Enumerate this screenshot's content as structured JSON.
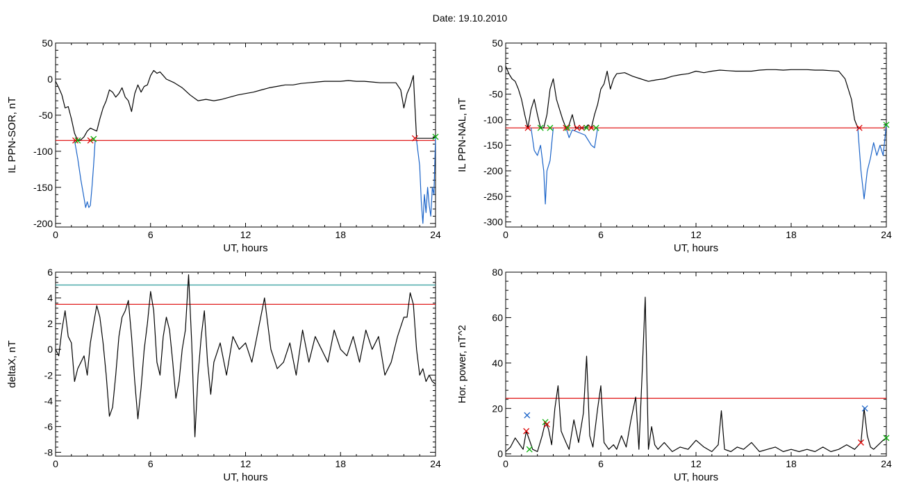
{
  "page": {
    "title": "Date:  19.10.2010"
  },
  "chart_data": [
    {
      "type": "line",
      "title": "",
      "xlabel": "UT, hours",
      "ylabel": "IL PPN-SOR, nT",
      "xlim": [
        0,
        24
      ],
      "ylim": [
        -205,
        50
      ],
      "xticks": [
        0,
        6,
        12,
        18,
        24
      ],
      "yticks": [
        -200,
        -150,
        -100,
        -50,
        0,
        50
      ],
      "hlines": [
        {
          "y": -85,
          "color": "#dd0000"
        }
      ],
      "series": [
        {
          "color": "#000000",
          "x": [
            0,
            0.2,
            0.4,
            0.6,
            0.8,
            1.0,
            1.2,
            1.4,
            1.6,
            1.8,
            2.0,
            2.2,
            2.4,
            2.6,
            2.8,
            3.0,
            3.2,
            3.4,
            3.6,
            3.8,
            4.0,
            4.2,
            4.4,
            4.6,
            4.8,
            5.0,
            5.2,
            5.4,
            5.6,
            5.8,
            6.0,
            6.2,
            6.4,
            6.6,
            6.8,
            7.0,
            7.5,
            8.0,
            8.5,
            9.0,
            9.5,
            10.0,
            10.5,
            11.0,
            11.5,
            12.0,
            12.5,
            13.0,
            13.5,
            14.0,
            14.5,
            15.0,
            15.5,
            16.0,
            16.5,
            17.0,
            17.5,
            18.0,
            18.5,
            19.0,
            19.5,
            20.0,
            20.5,
            21.0,
            21.5,
            21.8,
            22.0,
            22.2,
            22.4,
            22.6,
            22.8,
            23.0,
            23.2,
            23.4,
            23.6,
            23.8,
            24.0
          ],
          "y": [
            -3,
            -12,
            -22,
            -40,
            -38,
            -55,
            -75,
            -85,
            -84,
            -80,
            -72,
            -68,
            -70,
            -72,
            -55,
            -40,
            -30,
            -15,
            -18,
            -25,
            -20,
            -12,
            -25,
            -30,
            -45,
            -20,
            -8,
            -18,
            -10,
            -8,
            5,
            12,
            8,
            10,
            5,
            0,
            -5,
            -12,
            -22,
            -30,
            -28,
            -30,
            -28,
            -25,
            -22,
            -20,
            -18,
            -15,
            -12,
            -10,
            -8,
            -8,
            -6,
            -5,
            -4,
            -3,
            -3,
            -3,
            -2,
            -3,
            -3,
            -4,
            -5,
            -5,
            -5,
            -15,
            -40,
            -20,
            -10,
            5,
            -82,
            -82,
            -82,
            -82,
            -82,
            -82,
            -80
          ]
        },
        {
          "color": "#1a63c8",
          "x": [
            1.2,
            1.4,
            1.6,
            1.8,
            1.9,
            2.0,
            2.1,
            2.2,
            2.3,
            2.4,
            2.5
          ],
          "y": [
            -85,
            -110,
            -140,
            -165,
            -178,
            -170,
            -178,
            -175,
            -150,
            -120,
            -85
          ]
        },
        {
          "color": "#1a63c8",
          "x": [
            22.8,
            23.0,
            23.1,
            23.2,
            23.3,
            23.4,
            23.5,
            23.6,
            23.7,
            23.8,
            23.9,
            24.0
          ],
          "y": [
            -85,
            -120,
            -170,
            -200,
            -160,
            -185,
            -150,
            -175,
            -190,
            -150,
            -160,
            -80
          ]
        }
      ],
      "markers": [
        {
          "x": 1.25,
          "y": -85,
          "color": "#dd0000"
        },
        {
          "x": 1.4,
          "y": -85,
          "color": "#00b000"
        },
        {
          "x": 2.2,
          "y": -85,
          "color": "#dd0000"
        },
        {
          "x": 2.4,
          "y": -83,
          "color": "#00b000"
        },
        {
          "x": 22.7,
          "y": -82,
          "color": "#dd0000"
        },
        {
          "x": 24.0,
          "y": -80,
          "color": "#00b000"
        }
      ]
    },
    {
      "type": "line",
      "title": "",
      "xlabel": "UT, hours",
      "ylabel": "IL PPN-NAL, nT",
      "xlim": [
        0,
        24
      ],
      "ylim": [
        -310,
        50
      ],
      "xticks": [
        0,
        6,
        12,
        18,
        24
      ],
      "yticks": [
        -300,
        -250,
        -200,
        -150,
        -100,
        -50,
        0,
        50
      ],
      "hlines": [
        {
          "y": -116,
          "color": "#dd0000"
        }
      ],
      "series": [
        {
          "color": "#000000",
          "x": [
            0,
            0.2,
            0.4,
            0.6,
            0.8,
            1.0,
            1.2,
            1.4,
            1.6,
            1.8,
            2.0,
            2.2,
            2.4,
            2.6,
            2.8,
            3.0,
            3.2,
            3.4,
            3.6,
            3.8,
            4.0,
            4.2,
            4.4,
            4.6,
            4.8,
            5.0,
            5.2,
            5.4,
            5.6,
            5.8,
            6.0,
            6.2,
            6.4,
            6.6,
            6.8,
            7.0,
            7.5,
            8.0,
            8.5,
            9.0,
            9.5,
            10.0,
            10.5,
            11.0,
            11.5,
            12.0,
            12.5,
            13.0,
            13.5,
            14.0,
            14.5,
            15.0,
            15.5,
            16.0,
            16.5,
            17.0,
            17.5,
            18.0,
            18.5,
            19.0,
            19.5,
            20.0,
            20.5,
            21.0,
            21.4,
            21.8,
            22.0,
            22.2
          ],
          "y": [
            5,
            -10,
            -20,
            -25,
            -40,
            -60,
            -90,
            -116,
            -80,
            -60,
            -90,
            -116,
            -116,
            -90,
            -40,
            -20,
            -60,
            -80,
            -100,
            -116,
            -110,
            -90,
            -116,
            -116,
            -116,
            -116,
            -110,
            -116,
            -90,
            -70,
            -40,
            -30,
            -5,
            -40,
            -20,
            -10,
            -8,
            -15,
            -20,
            -25,
            -22,
            -20,
            -15,
            -12,
            -10,
            -5,
            -8,
            -5,
            -3,
            -4,
            -5,
            -5,
            -5,
            -3,
            -2,
            -2,
            -3,
            -2,
            -2,
            -2,
            -3,
            -3,
            -4,
            -5,
            -20,
            -60,
            -100,
            -116
          ]
        },
        {
          "color": "#1a63c8",
          "x": [
            1.6,
            1.8,
            2.0,
            2.2,
            2.4,
            2.5,
            2.6,
            2.8,
            3.0
          ],
          "y": [
            -116,
            -160,
            -170,
            -150,
            -200,
            -265,
            -200,
            -180,
            -116
          ]
        },
        {
          "color": "#1a63c8",
          "x": [
            3.8,
            4.0,
            4.2,
            5.0,
            5.4,
            5.6,
            5.8
          ],
          "y": [
            -116,
            -135,
            -120,
            -130,
            -150,
            -155,
            -116
          ]
        },
        {
          "color": "#1a63c8",
          "x": [
            22.2,
            22.4,
            22.6,
            22.8,
            23.0,
            23.2,
            23.4,
            23.6,
            23.8,
            24.0
          ],
          "y": [
            -116,
            -200,
            -255,
            -200,
            -175,
            -145,
            -170,
            -150,
            -170,
            -110
          ]
        }
      ],
      "markers": [
        {
          "x": 1.4,
          "y": -116,
          "color": "#dd0000"
        },
        {
          "x": 2.2,
          "y": -116,
          "color": "#00b000"
        },
        {
          "x": 2.8,
          "y": -116,
          "color": "#00b000"
        },
        {
          "x": 3.8,
          "y": -116,
          "color": "#dd0000"
        },
        {
          "x": 3.9,
          "y": -116,
          "color": "#00b000"
        },
        {
          "x": 4.5,
          "y": -116,
          "color": "#dd0000"
        },
        {
          "x": 4.8,
          "y": -116,
          "color": "#dd0000"
        },
        {
          "x": 5.1,
          "y": -116,
          "color": "#00b000"
        },
        {
          "x": 5.4,
          "y": -116,
          "color": "#dd0000"
        },
        {
          "x": 5.7,
          "y": -116,
          "color": "#00b000"
        },
        {
          "x": 22.3,
          "y": -116,
          "color": "#dd0000"
        },
        {
          "x": 24.0,
          "y": -110,
          "color": "#00b000"
        }
      ]
    },
    {
      "type": "line",
      "title": "",
      "xlabel": "UT, hours",
      "ylabel": "deltaX, nT",
      "xlim": [
        0,
        24
      ],
      "ylim": [
        -8.3,
        6
      ],
      "xticks": [
        0,
        6,
        12,
        18,
        24
      ],
      "yticks": [
        -8,
        -6,
        -4,
        -2,
        0,
        2,
        4,
        6
      ],
      "hlines": [
        {
          "y": 5.0,
          "color": "#2a9a9a"
        },
        {
          "y": 3.5,
          "color": "#dd0000"
        }
      ],
      "series": [
        {
          "color": "#000000",
          "x": [
            0,
            0.2,
            0.4,
            0.6,
            0.8,
            1.0,
            1.2,
            1.4,
            1.6,
            1.8,
            2.0,
            2.2,
            2.4,
            2.6,
            2.8,
            3.0,
            3.2,
            3.4,
            3.6,
            3.8,
            4.0,
            4.2,
            4.4,
            4.6,
            4.8,
            5.0,
            5.2,
            5.4,
            5.6,
            5.8,
            6.0,
            6.2,
            6.4,
            6.6,
            6.8,
            7.0,
            7.2,
            7.4,
            7.6,
            7.8,
            8.0,
            8.2,
            8.4,
            8.6,
            8.8,
            9.0,
            9.2,
            9.4,
            9.6,
            9.8,
            10.0,
            10.4,
            10.8,
            11.2,
            11.6,
            12.0,
            12.4,
            12.8,
            13.2,
            13.4,
            13.6,
            14.0,
            14.4,
            14.8,
            15.2,
            15.6,
            16.0,
            16.4,
            16.8,
            17.2,
            17.6,
            18.0,
            18.4,
            18.8,
            19.2,
            19.6,
            20.0,
            20.4,
            20.8,
            21.2,
            21.6,
            22.0,
            22.2,
            22.4,
            22.6,
            22.8,
            23.0,
            23.2,
            23.4,
            23.6,
            23.8,
            24.0
          ],
          "y": [
            0,
            -0.5,
            1.5,
            3.0,
            1.0,
            0.5,
            -2.5,
            -1.5,
            -1.0,
            -0.5,
            -2.0,
            0.5,
            2.0,
            3.4,
            2.5,
            0.5,
            -2.0,
            -5.2,
            -4.5,
            -2.0,
            1.0,
            2.5,
            3.0,
            3.8,
            1.0,
            -2.5,
            -5.4,
            -3.0,
            0.0,
            2.0,
            4.5,
            3.0,
            -1.0,
            -2.0,
            1.0,
            2.5,
            1.5,
            -1.0,
            -3.8,
            -2.5,
            0.0,
            1.5,
            5.8,
            0.5,
            -6.8,
            -2.0,
            1.0,
            3.0,
            -1.0,
            -3.5,
            -1.0,
            0.5,
            -2.0,
            1.0,
            0.0,
            0.5,
            -1.0,
            1.5,
            4.0,
            2.0,
            0.0,
            -1.5,
            -1.0,
            0.5,
            -2.0,
            1.5,
            -1.0,
            1.0,
            0.0,
            -1.0,
            1.5,
            0.0,
            -0.5,
            1.0,
            -1.0,
            1.5,
            0.0,
            1.0,
            -2.0,
            -1.0,
            1.0,
            2.5,
            2.5,
            4.4,
            3.5,
            0.0,
            -2.0,
            -1.5,
            -2.5,
            -2.0,
            -2.5,
            -2.7
          ]
        }
      ],
      "markers": []
    },
    {
      "type": "line",
      "title": "",
      "xlabel": "UT, hours",
      "ylabel": "Hor. power, nT^2",
      "xlim": [
        0,
        24
      ],
      "ylim": [
        -1,
        80
      ],
      "xticks": [
        0,
        6,
        12,
        18,
        24
      ],
      "yticks": [
        0,
        20,
        40,
        60,
        80
      ],
      "hlines": [
        {
          "y": 24.5,
          "color": "#dd0000"
        }
      ],
      "series": [
        {
          "color": "#000000",
          "x": [
            0,
            0.3,
            0.6,
            0.9,
            1.1,
            1.3,
            1.5,
            1.7,
            2.0,
            2.3,
            2.5,
            2.7,
            2.9,
            3.1,
            3.3,
            3.5,
            3.8,
            4.0,
            4.3,
            4.6,
            4.9,
            5.1,
            5.3,
            5.5,
            5.8,
            6.0,
            6.2,
            6.5,
            6.8,
            7.0,
            7.3,
            7.6,
            7.9,
            8.2,
            8.4,
            8.6,
            8.8,
            9.0,
            9.2,
            9.4,
            9.6,
            10.0,
            10.5,
            11.0,
            11.5,
            12.0,
            12.5,
            13.0,
            13.4,
            13.6,
            13.8,
            14.2,
            14.6,
            15.0,
            15.5,
            16.0,
            16.5,
            17.0,
            17.5,
            18.0,
            18.5,
            19.0,
            19.5,
            20.0,
            20.5,
            21.0,
            21.5,
            22.0,
            22.4,
            22.6,
            22.8,
            23.0,
            23.2,
            23.5,
            23.8,
            24.0
          ],
          "y": [
            1,
            3,
            7,
            4,
            2,
            10,
            6,
            2,
            1,
            8,
            14,
            11,
            4,
            20,
            30,
            10,
            5,
            2,
            15,
            5,
            18,
            43,
            8,
            3,
            20,
            30,
            5,
            2,
            4,
            2,
            8,
            3,
            15,
            25,
            2,
            35,
            69,
            2,
            12,
            4,
            2,
            5,
            1,
            3,
            2,
            6,
            3,
            1,
            4,
            19,
            2,
            1,
            3,
            2,
            5,
            1,
            2,
            3,
            1,
            2,
            1,
            2,
            1,
            3,
            1,
            2,
            4,
            2,
            5,
            20,
            8,
            3,
            2,
            4,
            6,
            7
          ]
        }
      ],
      "markers": [
        {
          "x": 1.3,
          "y": 10,
          "color": "#dd0000"
        },
        {
          "x": 1.35,
          "y": 17,
          "color": "#1a63c8"
        },
        {
          "x": 1.5,
          "y": 2,
          "color": "#00b000"
        },
        {
          "x": 2.5,
          "y": 14,
          "color": "#00b000"
        },
        {
          "x": 2.6,
          "y": 13,
          "color": "#dd0000"
        },
        {
          "x": 22.4,
          "y": 5,
          "color": "#dd0000"
        },
        {
          "x": 22.65,
          "y": 20,
          "color": "#1a63c8"
        },
        {
          "x": 24.0,
          "y": 7,
          "color": "#00b000"
        }
      ]
    }
  ]
}
